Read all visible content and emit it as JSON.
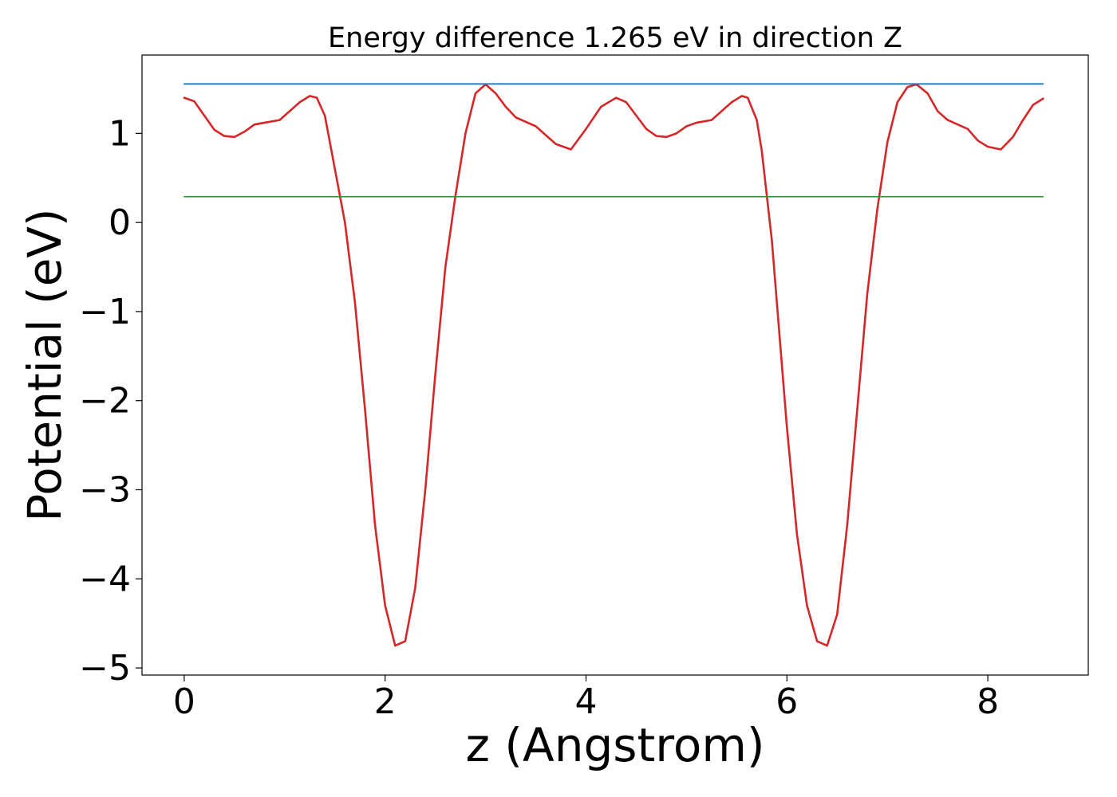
{
  "chart_data": {
    "type": "line",
    "title": "Energy difference 1.265 eV in direction Z",
    "xlabel": "z (Angstrom)",
    "ylabel": "Potential (eV)",
    "xlim": [
      -0.42,
      9.0
    ],
    "ylim": [
      -5.08,
      1.88
    ],
    "xticks": [
      0,
      2,
      4,
      6,
      8
    ],
    "xtick_labels": [
      "0",
      "2",
      "4",
      "6",
      "8"
    ],
    "yticks": [
      -5,
      -4,
      -3,
      -2,
      -1,
      0,
      1
    ],
    "ytick_labels": [
      "−5",
      "−4",
      "−3",
      "−2",
      "−1",
      "0",
      "1"
    ],
    "grid": false,
    "series": [
      {
        "color": "#d62728",
        "x": [
          0.0,
          0.1,
          0.2,
          0.3,
          0.4,
          0.5,
          0.6,
          0.7,
          0.8,
          0.95,
          1.05,
          1.15,
          1.25,
          1.32,
          1.4,
          1.45,
          1.5,
          1.55,
          1.6,
          1.7,
          1.8,
          1.9,
          2.0,
          2.1,
          2.2,
          2.3,
          2.4,
          2.5,
          2.6,
          2.7,
          2.8,
          2.9,
          3.0,
          3.1,
          3.2,
          3.3,
          3.5,
          3.6,
          3.7,
          3.85,
          4.0,
          4.15,
          4.3,
          4.4,
          4.5,
          4.6,
          4.7,
          4.8,
          4.9,
          5.0,
          5.1,
          5.25,
          5.35,
          5.45,
          5.55,
          5.61,
          5.7,
          5.75,
          5.8,
          5.85,
          5.9,
          6.0,
          6.1,
          6.2,
          6.3,
          6.4,
          6.5,
          6.6,
          6.7,
          6.8,
          6.9,
          7.0,
          7.1,
          7.2,
          7.29,
          7.4,
          7.5,
          7.6,
          7.8,
          7.9,
          8.0,
          8.13,
          8.25,
          8.35,
          8.45,
          8.55
        ],
        "y": [
          1.4,
          1.36,
          1.2,
          1.04,
          0.97,
          0.96,
          1.02,
          1.1,
          1.12,
          1.15,
          1.25,
          1.35,
          1.42,
          1.4,
          1.2,
          0.9,
          0.6,
          0.3,
          0.0,
          -0.9,
          -2.1,
          -3.4,
          -4.3,
          -4.75,
          -4.7,
          -4.1,
          -3.0,
          -1.7,
          -0.5,
          0.3,
          1.0,
          1.45,
          1.55,
          1.45,
          1.3,
          1.18,
          1.08,
          0.98,
          0.88,
          0.82,
          1.05,
          1.3,
          1.4,
          1.35,
          1.2,
          1.05,
          0.97,
          0.96,
          1.0,
          1.08,
          1.12,
          1.15,
          1.25,
          1.35,
          1.42,
          1.4,
          1.15,
          0.8,
          0.3,
          -0.2,
          -0.9,
          -2.3,
          -3.5,
          -4.3,
          -4.7,
          -4.75,
          -4.4,
          -3.4,
          -2.1,
          -0.8,
          0.15,
          0.9,
          1.35,
          1.52,
          1.55,
          1.45,
          1.25,
          1.15,
          1.05,
          0.92,
          0.85,
          0.82,
          0.96,
          1.15,
          1.32,
          1.39
        ]
      },
      {
        "color": "#1f77b4",
        "x": [
          0.0,
          8.55
        ],
        "y": [
          1.555,
          1.555
        ]
      },
      {
        "color": "#2ca02c",
        "x": [
          0.0,
          8.55
        ],
        "y": [
          0.29,
          0.29
        ]
      }
    ]
  }
}
